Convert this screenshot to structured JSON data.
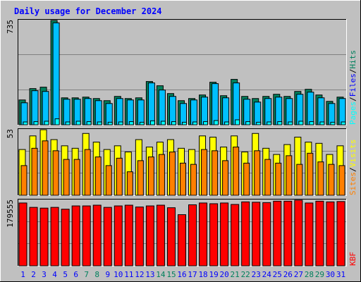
{
  "chart_data": {
    "type": "bar",
    "title": "Daily usage for December 2024",
    "categories": [
      "1",
      "2",
      "3",
      "4",
      "5",
      "6",
      "7",
      "8",
      "9",
      "10",
      "11",
      "12",
      "13",
      "14",
      "15",
      "16",
      "17",
      "18",
      "19",
      "20",
      "21",
      "22",
      "23",
      "24",
      "25",
      "26",
      "27",
      "28",
      "29",
      "30",
      "31"
    ],
    "weekend_days": [
      "7",
      "8",
      "14",
      "15",
      "21",
      "22",
      "28",
      "29"
    ],
    "panels": [
      {
        "id": "hits-files-pages",
        "ymax_label": "735",
        "ylim": [
          0,
          735
        ],
        "legend": [
          "Pages",
          "/",
          "Files",
          "/",
          "Hits"
        ],
        "series": [
          {
            "name": "Hits",
            "values": [
              175,
              255,
              265,
              735,
              190,
              190,
              195,
              185,
              170,
              200,
              185,
              190,
              305,
              275,
              220,
              170,
              185,
              210,
              300,
              205,
              320,
              200,
              185,
              200,
              215,
              200,
              235,
              250,
              210,
              165,
              195
            ]
          },
          {
            "name": "Files",
            "values": [
              155,
              240,
              235,
              718,
              180,
              180,
              185,
              170,
              150,
              185,
              175,
              175,
              295,
              245,
              200,
              150,
              175,
              195,
              290,
              190,
              295,
              180,
              160,
              185,
              195,
              185,
              215,
              230,
              190,
              150,
              185
            ]
          },
          {
            "name": "Pages",
            "values": [
              20,
              22,
              25,
              42,
              20,
              25,
              22,
              20,
              18,
              20,
              22,
              18,
              28,
              25,
              22,
              18,
              20,
              22,
              30,
              20,
              35,
              22,
              18,
              20,
              22,
              20,
              25,
              22,
              20,
              18,
              20
            ]
          }
        ]
      },
      {
        "id": "visits-sites",
        "ymax_label": "53",
        "ylim": [
          0,
          53
        ],
        "legend": [
          "Sites",
          "/",
          "Visits"
        ],
        "series": [
          {
            "name": "Visits",
            "values": [
              37,
              48,
              53,
              45,
              40,
              38,
              50,
              43,
              37,
              40,
              35,
              45,
              39,
              43,
              45,
              38,
              37,
              48,
              47,
              39,
              48,
              35,
              50,
              38,
              33,
              41,
              47,
              43,
              42,
              33,
              40
            ]
          },
          {
            "name": "Sites",
            "values": [
              24,
              38,
              44,
              36,
              29,
              29,
              37,
              31,
              24,
              30,
              19,
              28,
              31,
              33,
              35,
              26,
              25,
              37,
              36,
              28,
              39,
              26,
              36,
              29,
              26,
              32,
              25,
              34,
              27,
              25,
              24
            ]
          }
        ]
      },
      {
        "id": "kbytes",
        "ymax_label": "179555",
        "ylim": [
          0,
          179555
        ],
        "legend": [
          "KB",
          "F"
        ],
        "series": [
          {
            "name": "KBytes",
            "values": [
              172000,
              160000,
              158000,
              160000,
              155000,
              164000,
              164000,
              166000,
              160000,
              164000,
              166000,
              161000,
              164000,
              166000,
              159000,
              140000,
              167000,
              172000,
              170000,
              172000,
              168000,
              175000,
              174000,
              173000,
              177000,
              177000,
              179555,
              172000,
              177000,
              175000,
              176000
            ]
          }
        ]
      }
    ]
  },
  "colors": {
    "background": "#c0c0c0",
    "title": "#0000ff",
    "hits": "#00805c",
    "files": "#00c0ff",
    "pages": "#00ffff",
    "visits": "#ffff00",
    "sites": "#ff8000",
    "kbytes": "#ff0000",
    "weekday_label": "#0000ff",
    "weekend_label": "#00805c",
    "legend_slash": "#000000",
    "legend_files": "#0000ff"
  }
}
